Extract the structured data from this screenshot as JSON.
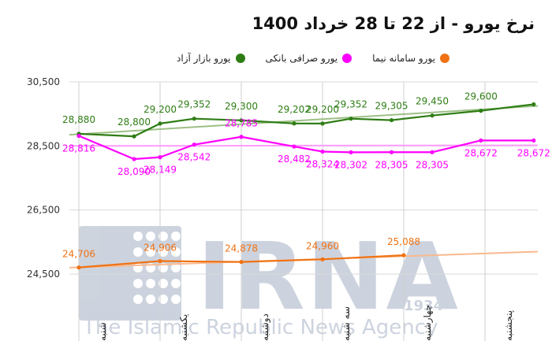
{
  "title": "نرخ یورو - از 22 تا 28 خرداد 1400",
  "colors": {
    "azad": "#2e7d14",
    "sarafi": "#ff00ff",
    "nima": "#f07214",
    "azad_trend": "#9dbf86",
    "sarafi_trend": "#ff9cff",
    "nima_trend": "#f9b98e",
    "grid": "#d9d9d9"
  },
  "watermark": {
    "logo": "IRNA",
    "year": "1934",
    "tagline": "The Islamic Republic News Agency"
  },
  "chart_data": {
    "type": "line",
    "categories": [
      "شنبه",
      "یکشنبه",
      "دوشنبه",
      "سه شنبه",
      "چهارشنبه",
      "پنجشنبه"
    ],
    "ylim": [
      24500,
      30500
    ],
    "yticks": [
      30500,
      28500,
      26500,
      24500
    ],
    "ytick_labels": [
      "30,500",
      "28,500",
      "26,500",
      "24,500"
    ],
    "grid": true,
    "legend_position": "top",
    "series": [
      {
        "name": "یورو بازار آزاد",
        "color_key": "azad",
        "x": [
          0,
          0.68,
          1,
          1.42,
          2,
          2.65,
          3,
          3.35,
          3.85,
          4.35,
          4.95,
          5.6
        ],
        "values": [
          28880,
          28800,
          29200,
          29352,
          29300,
          29202,
          29200,
          29352,
          29305,
          29450,
          29600,
          29800
        ],
        "labels": [
          {
            "i": 0,
            "text": "28,880"
          },
          {
            "i": 1,
            "text": "28,800"
          },
          {
            "i": 2,
            "text": "29,200"
          },
          {
            "i": 3,
            "text": "29,352"
          },
          {
            "i": 4,
            "text": "29,300"
          },
          {
            "i": 5,
            "text": "29,202"
          },
          {
            "i": 6,
            "text": "29,200"
          },
          {
            "i": 7,
            "text": "29,352"
          },
          {
            "i": 8,
            "text": "29,305"
          },
          {
            "i": 9,
            "text": "29,450"
          },
          {
            "i": 10,
            "text": "29,600"
          }
        ],
        "trend": [
          28850,
          29750
        ]
      },
      {
        "name": "یورو صرافی بانکی",
        "color_key": "sarafi",
        "x": [
          0,
          0.68,
          1,
          1.42,
          2,
          2.65,
          3,
          3.35,
          3.85,
          4.35,
          4.95,
          5.6
        ],
        "values": [
          28816,
          28090,
          28149,
          28542,
          28785,
          28482,
          28324,
          28302,
          28305,
          28305,
          28672,
          28672
        ],
        "labels": [
          {
            "i": 0,
            "text": "28,816"
          },
          {
            "i": 1,
            "text": "28,090"
          },
          {
            "i": 2,
            "text": "28,149"
          },
          {
            "i": 3,
            "text": "28,542"
          },
          {
            "i": 4,
            "text": "28,785"
          },
          {
            "i": 5,
            "text": "28,482"
          },
          {
            "i": 6,
            "text": "28,324"
          },
          {
            "i": 7,
            "text": "28,302"
          },
          {
            "i": 8,
            "text": "28,305"
          },
          {
            "i": 9,
            "text": "28,305"
          },
          {
            "i": 10,
            "text": "28,672"
          },
          {
            "i": 11,
            "text": "28,672"
          }
        ],
        "trend": [
          28500,
          28520
        ]
      },
      {
        "name": "یورو سامانه نیما",
        "color_key": "nima",
        "x": [
          0,
          1,
          2,
          3,
          4
        ],
        "values": [
          24706,
          24906,
          24878,
          24960,
          25088
        ],
        "labels": [
          {
            "i": 0,
            "text": "24,706"
          },
          {
            "i": 1,
            "text": "24,906"
          },
          {
            "i": 2,
            "text": "24,878"
          },
          {
            "i": 3,
            "text": "24,960"
          },
          {
            "i": 4,
            "text": "25,088"
          }
        ],
        "trend": [
          24700,
          25200
        ]
      }
    ]
  }
}
